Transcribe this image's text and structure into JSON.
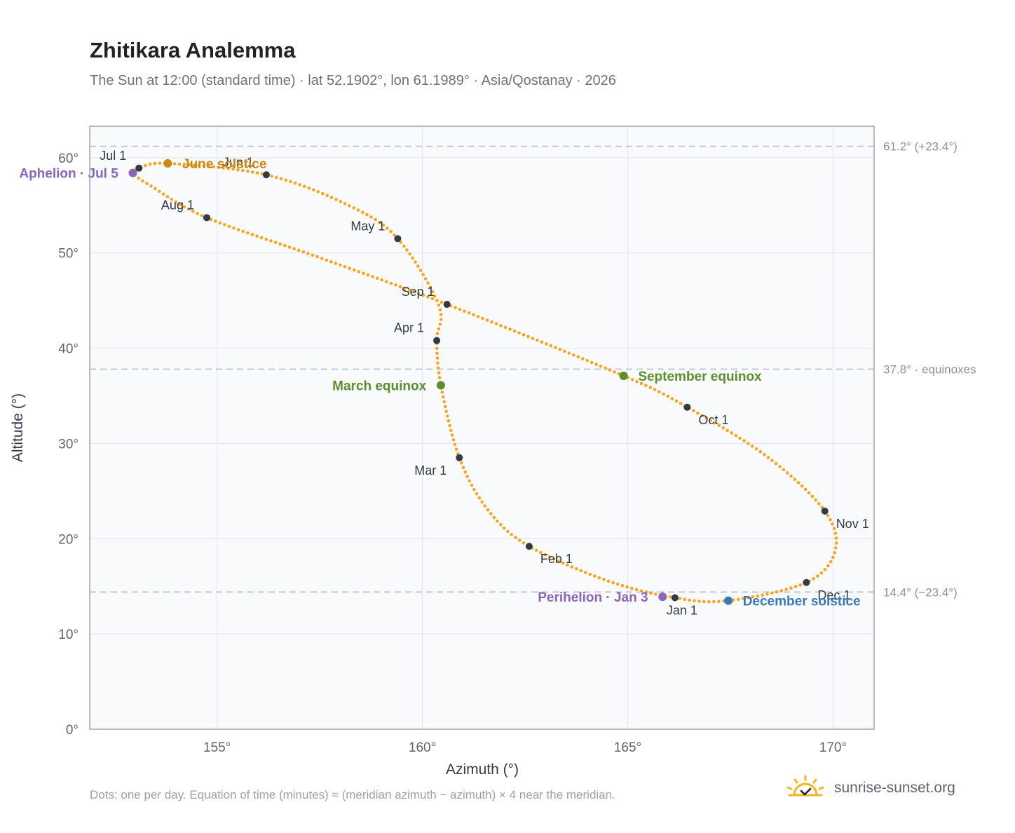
{
  "title": "Zhitikara Analemma",
  "subtitle": "The Sun at 12:00 (standard time) · lat 52.1902°, lon 61.1989° · Asia/Qostanay · 2026",
  "footnote": "Dots: one per day. Equation of time (minutes) ≈ (meridian azimuth − azimuth) × 4 near the meridian.",
  "brand": {
    "text": "sunrise-sunset.org",
    "icon": "sun-logo-icon"
  },
  "colors": {
    "curve": "#f5a623",
    "month_marker": "#333a45",
    "equinox": "#5a8f2c",
    "june_solstice": "#c88a12",
    "december_solstice": "#3a78b8",
    "apsis": "#8a64b8",
    "plot_background": "#f8fafc",
    "grid": "#e3e8ee",
    "reference_line": "#b5c0cb"
  },
  "chart_data": {
    "type": "scatter",
    "title": "Zhitikara Analemma",
    "xlabel": "Azimuth (°)",
    "ylabel": "Altitude (°)",
    "xlim": [
      151.9,
      171.0
    ],
    "ylim": [
      0,
      63.3
    ],
    "xticks": [
      155,
      160,
      165,
      170
    ],
    "yticks": [
      0,
      10,
      20,
      30,
      40,
      50,
      60
    ],
    "tick_suffix": "°",
    "grid": true,
    "reference_lines": [
      {
        "y": 61.2,
        "label": "61.2° (+23.4°)"
      },
      {
        "y": 37.8,
        "label": "37.8° · equinoxes"
      },
      {
        "y": 14.4,
        "label": "14.4° (−23.4°)"
      }
    ],
    "path_anchors": [
      {
        "date": "Jan 1",
        "az": 166.15,
        "alt": 13.8
      },
      {
        "date": "Jan 15",
        "az": 164.5,
        "alt": 15.6
      },
      {
        "date": "Feb 1",
        "az": 162.6,
        "alt": 19.2
      },
      {
        "date": "Feb 15",
        "az": 161.6,
        "alt": 23.0
      },
      {
        "date": "Mar 1",
        "az": 160.9,
        "alt": 28.5
      },
      {
        "date": "Mar 20",
        "az": 160.45,
        "alt": 36.1
      },
      {
        "date": "Apr 1",
        "az": 160.35,
        "alt": 40.8
      },
      {
        "date": "Apr 10",
        "az": 160.4,
        "alt": 44.5
      },
      {
        "date": "May 1",
        "az": 159.4,
        "alt": 51.5
      },
      {
        "date": "May 15",
        "az": 158.2,
        "alt": 55.0
      },
      {
        "date": "Jun 1",
        "az": 156.2,
        "alt": 58.2
      },
      {
        "date": "Jun 21",
        "az": 153.8,
        "alt": 59.4
      },
      {
        "date": "Jul 1",
        "az": 153.1,
        "alt": 58.9
      },
      {
        "date": "Jul 5",
        "az": 152.95,
        "alt": 58.4
      },
      {
        "date": "Jul 15",
        "az": 153.4,
        "alt": 57.0
      },
      {
        "date": "Aug 1",
        "az": 154.75,
        "alt": 53.7
      },
      {
        "date": "Aug 15",
        "az": 157.5,
        "alt": 49.5
      },
      {
        "date": "Sep 1",
        "az": 160.6,
        "alt": 44.6
      },
      {
        "date": "Sep 22",
        "az": 164.9,
        "alt": 37.1
      },
      {
        "date": "Oct 1",
        "az": 166.45,
        "alt": 33.8
      },
      {
        "date": "Oct 15",
        "az": 168.4,
        "alt": 28.6
      },
      {
        "date": "Nov 1",
        "az": 169.8,
        "alt": 22.9
      },
      {
        "date": "Nov 15",
        "az": 170.05,
        "alt": 18.7
      },
      {
        "date": "Dec 1",
        "az": 169.35,
        "alt": 15.4
      },
      {
        "date": "Dec 21",
        "az": 167.45,
        "alt": 13.5
      }
    ],
    "month_markers": [
      {
        "label": "Jan 1",
        "az": 166.15,
        "alt": 13.8,
        "anchor": "below"
      },
      {
        "label": "Feb 1",
        "az": 162.6,
        "alt": 19.2,
        "anchor": "below-right"
      },
      {
        "label": "Mar 1",
        "az": 160.9,
        "alt": 28.5,
        "anchor": "below-left"
      },
      {
        "label": "Apr 1",
        "az": 160.35,
        "alt": 40.8,
        "anchor": "above-left"
      },
      {
        "label": "May 1",
        "az": 159.4,
        "alt": 51.5,
        "anchor": "above-left"
      },
      {
        "label": "Jun 1",
        "az": 156.2,
        "alt": 58.2,
        "anchor": "above-left"
      },
      {
        "label": "Jul 1",
        "az": 153.1,
        "alt": 58.9,
        "anchor": "above-left"
      },
      {
        "label": "Aug 1",
        "az": 154.75,
        "alt": 53.7,
        "anchor": "above-left"
      },
      {
        "label": "Sep 1",
        "az": 160.6,
        "alt": 44.6,
        "anchor": "above-left"
      },
      {
        "label": "Oct 1",
        "az": 166.45,
        "alt": 33.8,
        "anchor": "below-right"
      },
      {
        "label": "Nov 1",
        "az": 169.8,
        "alt": 22.9,
        "anchor": "below-right"
      },
      {
        "label": "Dec 1",
        "az": 169.35,
        "alt": 15.4,
        "anchor": "below-right"
      }
    ],
    "events": [
      {
        "label": "March equinox",
        "az": 160.45,
        "alt": 36.1,
        "color_key": "equinox",
        "anchor": "left"
      },
      {
        "label": "September equinox",
        "az": 164.9,
        "alt": 37.1,
        "color_key": "equinox",
        "anchor": "right"
      },
      {
        "label": "June solstice",
        "az": 153.8,
        "alt": 59.4,
        "color_key": "june_solstice",
        "anchor": "right"
      },
      {
        "label": "December solstice",
        "az": 167.45,
        "alt": 13.5,
        "color_key": "december_solstice",
        "anchor": "right"
      },
      {
        "label": "Aphelion · Jul 5",
        "az": 152.95,
        "alt": 58.4,
        "color_key": "apsis",
        "anchor": "left"
      },
      {
        "label": "Perihelion · Jan 3",
        "az": 165.85,
        "alt": 13.9,
        "color_key": "apsis",
        "anchor": "left"
      }
    ]
  }
}
